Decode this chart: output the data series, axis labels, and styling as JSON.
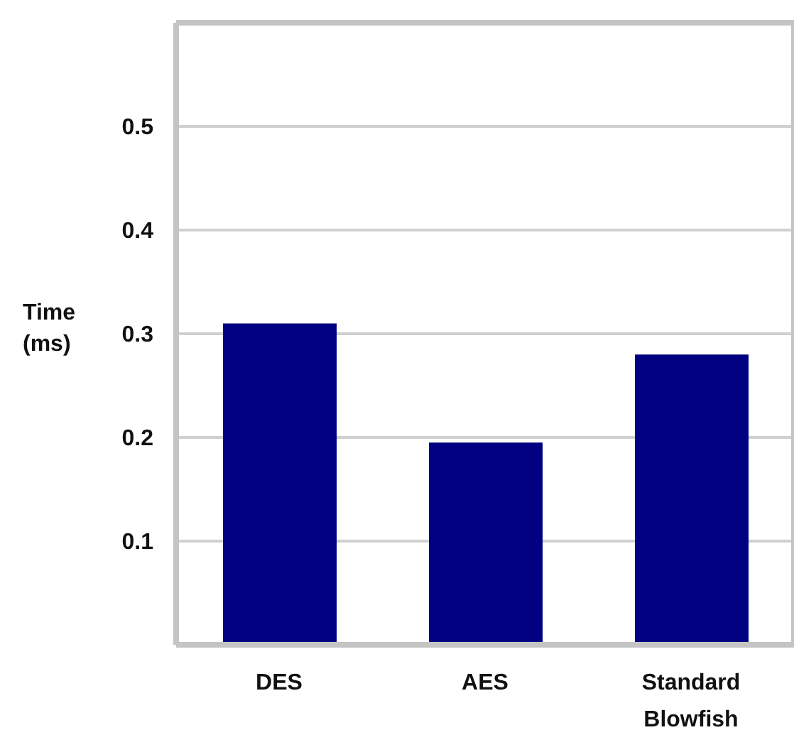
{
  "chart_data": {
    "type": "bar",
    "ylabel": "Time (ms)",
    "categories": [
      "DES",
      "AES",
      "Standard Blowfish"
    ],
    "values": [
      0.31,
      0.195,
      0.28
    ],
    "color": "#000080",
    "ylim": [
      0,
      0.6
    ],
    "yticks": [
      0.1,
      0.2,
      0.3,
      0.4,
      0.5
    ],
    "grid": "y"
  }
}
